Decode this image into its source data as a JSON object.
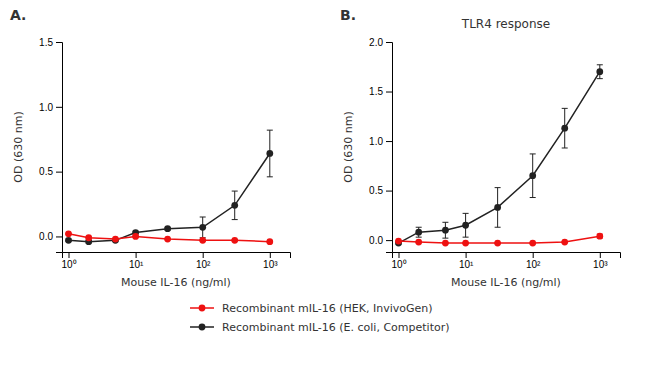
{
  "chart_data": [
    {
      "type": "line",
      "annotations": [
        "A."
      ],
      "x_label": "Mouse IL-16 (ng/ml)",
      "y_label": "OD (630 nm)",
      "log": "x",
      "grid": false,
      "legend": "bottom",
      "xlim": [
        0.8,
        2000
      ],
      "xticks": [
        {
          "value": 1,
          "label": "10⁰"
        },
        {
          "value": 10,
          "label": "10¹"
        },
        {
          "value": 100,
          "label": "10²"
        },
        {
          "value": 1000,
          "label": "10³"
        }
      ],
      "ylim": [
        -0.12,
        1.5
      ],
      "yticks": [
        {
          "value": 0,
          "label": "0.0"
        },
        0.5,
        {
          "value": 1,
          "label": "1.0"
        },
        1.5
      ],
      "x": [
        1,
        2,
        5,
        10,
        30,
        100,
        300,
        1000
      ],
      "series": [
        {
          "name": "Recombinant mIL-16 (E. coli, Competitor)",
          "color": "#222222",
          "marker": "circle",
          "line_style": "solid",
          "values": [
            -0.03,
            -0.04,
            -0.03,
            0.03,
            0.06,
            0.07,
            0.24,
            0.64
          ],
          "errors": [
            0.01,
            0.01,
            0.01,
            0.01,
            0.01,
            0.08,
            0.11,
            0.18
          ]
        },
        {
          "name": "Recombinant mIL-16 (HEK, InvivoGen)",
          "color": "#ee1111",
          "marker": "circle",
          "line_style": "solid",
          "values": [
            0.02,
            -0.01,
            -0.02,
            0.0,
            -0.02,
            -0.03,
            -0.03,
            -0.04
          ],
          "errors": [
            0.005,
            0.005,
            0.005,
            0.005,
            0.005,
            0.005,
            0.005,
            0.005
          ]
        }
      ]
    },
    {
      "type": "line",
      "title": "TLR4 response",
      "annotations": [
        "B."
      ],
      "x_label": "Mouse IL-16 (ng/ml)",
      "y_label": "OD (630 nm)",
      "log": "x",
      "grid": false,
      "xlim": [
        0.8,
        2000
      ],
      "xticks": [
        {
          "value": 1,
          "label": "10⁰"
        },
        {
          "value": 10,
          "label": "10¹"
        },
        {
          "value": 100,
          "label": "10²"
        },
        {
          "value": 1000,
          "label": "10³"
        }
      ],
      "ylim": [
        -0.12,
        2.0
      ],
      "yticks": [
        {
          "value": 0,
          "label": "0.0"
        },
        0.5,
        {
          "value": 1,
          "label": "1.0"
        },
        1.5,
        {
          "value": 2,
          "label": "2.0"
        }
      ],
      "x": [
        1,
        2,
        5,
        10,
        30,
        100,
        300,
        1000
      ],
      "series": [
        {
          "name": "Recombinant mIL-16 (E. coli, Competitor)",
          "color": "#222222",
          "marker": "circle",
          "line_style": "solid",
          "values": [
            -0.03,
            0.08,
            0.1,
            0.15,
            0.33,
            0.65,
            1.13,
            1.7
          ],
          "errors": [
            0.01,
            0.05,
            0.08,
            0.12,
            0.2,
            0.22,
            0.2,
            0.07
          ]
        },
        {
          "name": "Recombinant mIL-16 (HEK, InvivoGen)",
          "color": "#ee1111",
          "marker": "circle",
          "line_style": "solid",
          "values": [
            -0.01,
            -0.02,
            -0.03,
            -0.03,
            -0.03,
            -0.03,
            -0.02,
            0.04
          ],
          "errors": [
            0.005,
            0.005,
            0.005,
            0.005,
            0.005,
            0.005,
            0.005,
            0.02
          ]
        }
      ]
    }
  ]
}
